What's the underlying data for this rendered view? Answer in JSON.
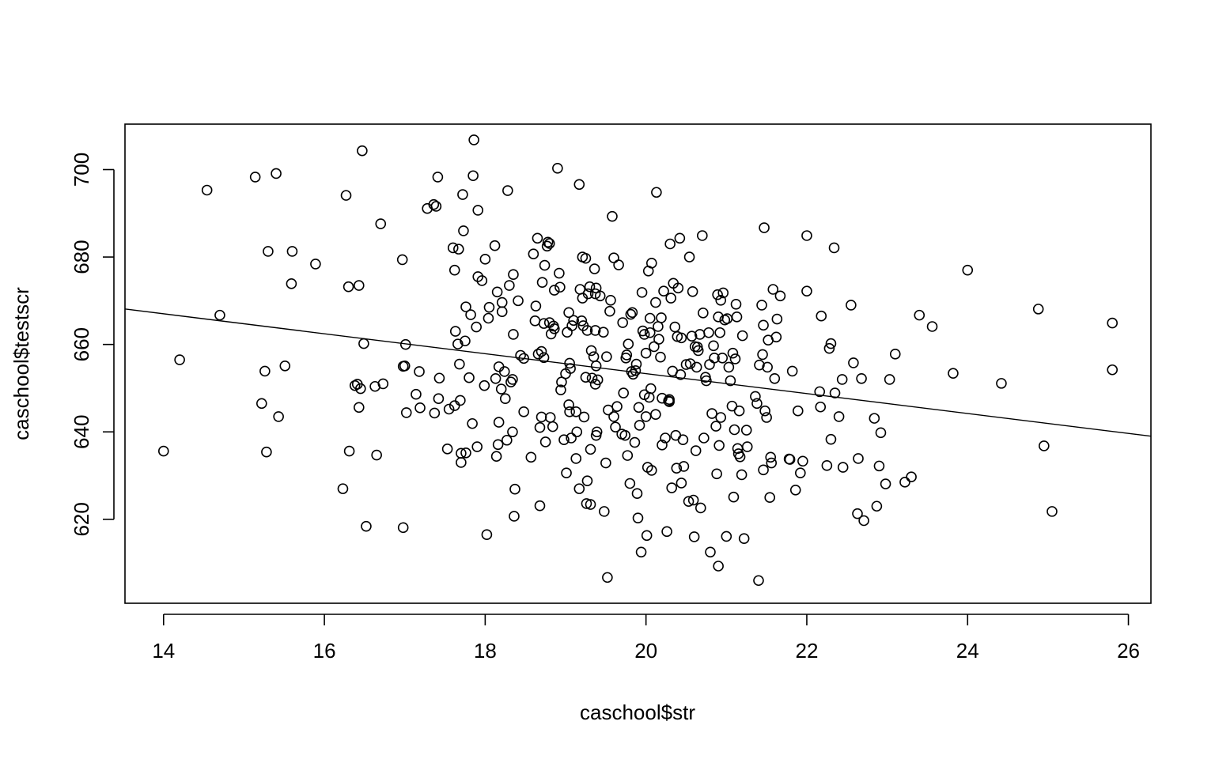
{
  "chart_data": {
    "type": "scatter",
    "title": "",
    "xlabel": "caschool$str",
    "ylabel": "caschool$testscr",
    "xlim": [
      13.52,
      26.28
    ],
    "ylim": [
      600.8,
      710.4
    ],
    "x_ticks": [
      14,
      16,
      18,
      20,
      22,
      24,
      26
    ],
    "x_tick_labels": [
      "14",
      "16",
      "18",
      "20",
      "22",
      "24",
      "26"
    ],
    "y_ticks": [
      620,
      640,
      660,
      680,
      700
    ],
    "y_tick_labels": [
      "620",
      "640",
      "660",
      "680",
      "700"
    ],
    "grid": false,
    "legend": "none",
    "regression_line": {
      "intercept": 698.93,
      "slope": -2.28
    },
    "points": [
      [
        14.0,
        635.6
      ],
      [
        14.2,
        656.5
      ],
      [
        14.54,
        695.3
      ],
      [
        14.7,
        666.7
      ],
      [
        15.14,
        698.3
      ],
      [
        15.22,
        646.5
      ],
      [
        15.26,
        653.9
      ],
      [
        15.28,
        635.4
      ],
      [
        15.3,
        681.3
      ],
      [
        15.4,
        699.1
      ],
      [
        15.43,
        643.5
      ],
      [
        15.51,
        655.1
      ],
      [
        15.59,
        673.9
      ],
      [
        15.6,
        681.3
      ],
      [
        15.89,
        678.4
      ],
      [
        16.23,
        627.0
      ],
      [
        16.27,
        694.1
      ],
      [
        16.3,
        673.2
      ],
      [
        16.31,
        635.6
      ],
      [
        16.38,
        650.6
      ],
      [
        16.41,
        650.9
      ],
      [
        16.43,
        673.5
      ],
      [
        16.43,
        645.6
      ],
      [
        16.45,
        649.9
      ],
      [
        16.47,
        704.3
      ],
      [
        16.49,
        660.2
      ],
      [
        16.52,
        618.4
      ],
      [
        16.63,
        650.4
      ],
      [
        16.65,
        634.7
      ],
      [
        16.7,
        687.6
      ],
      [
        16.73,
        651.0
      ],
      [
        16.97,
        679.4
      ],
      [
        16.98,
        618.1
      ],
      [
        16.98,
        655.0
      ],
      [
        17.0,
        655.1
      ],
      [
        17.01,
        660.0
      ],
      [
        17.02,
        644.4
      ],
      [
        17.14,
        648.6
      ],
      [
        17.18,
        653.8
      ],
      [
        17.19,
        645.5
      ],
      [
        17.28,
        691.1
      ],
      [
        17.36,
        692.0
      ],
      [
        17.37,
        644.3
      ],
      [
        17.39,
        691.6
      ],
      [
        17.41,
        698.3
      ],
      [
        17.42,
        647.6
      ],
      [
        17.43,
        652.3
      ],
      [
        17.53,
        636.1
      ],
      [
        17.55,
        645.2
      ],
      [
        17.6,
        682.1
      ],
      [
        17.62,
        646.0
      ],
      [
        17.62,
        677.0
      ],
      [
        17.63,
        663.0
      ],
      [
        17.66,
        660.1
      ],
      [
        17.67,
        681.8
      ],
      [
        17.68,
        655.5
      ],
      [
        17.69,
        647.2
      ],
      [
        17.7,
        633.0
      ],
      [
        17.7,
        635.1
      ],
      [
        17.72,
        694.3
      ],
      [
        17.73,
        686.0
      ],
      [
        17.75,
        660.8
      ],
      [
        17.76,
        668.6
      ],
      [
        17.76,
        635.2
      ],
      [
        17.8,
        652.4
      ],
      [
        17.82,
        666.8
      ],
      [
        17.84,
        641.9
      ],
      [
        17.85,
        698.6
      ],
      [
        17.86,
        706.8
      ],
      [
        17.89,
        664.0
      ],
      [
        17.9,
        636.6
      ],
      [
        17.91,
        675.5
      ],
      [
        17.91,
        690.7
      ],
      [
        17.96,
        674.6
      ],
      [
        17.99,
        650.6
      ],
      [
        18.0,
        679.5
      ],
      [
        18.02,
        616.5
      ],
      [
        18.04,
        666.0
      ],
      [
        18.05,
        668.5
      ],
      [
        18.12,
        682.6
      ],
      [
        18.13,
        652.2
      ],
      [
        18.14,
        634.4
      ],
      [
        18.15,
        672.0
      ],
      [
        18.16,
        637.1
      ],
      [
        18.17,
        642.2
      ],
      [
        18.17,
        654.9
      ],
      [
        18.2,
        649.8
      ],
      [
        18.21,
        667.5
      ],
      [
        18.21,
        669.6
      ],
      [
        18.24,
        653.8
      ],
      [
        18.25,
        647.6
      ],
      [
        18.27,
        638.1
      ],
      [
        18.28,
        695.2
      ],
      [
        18.3,
        673.5
      ],
      [
        18.32,
        651.4
      ],
      [
        18.34,
        652.0
      ],
      [
        18.34,
        640.0
      ],
      [
        18.35,
        662.3
      ],
      [
        18.35,
        676.0
      ],
      [
        18.36,
        620.7
      ],
      [
        18.37,
        626.9
      ],
      [
        18.41,
        670.0
      ],
      [
        18.44,
        657.5
      ],
      [
        18.48,
        644.6
      ],
      [
        18.48,
        656.8
      ],
      [
        18.57,
        634.2
      ],
      [
        18.6,
        680.7
      ],
      [
        18.62,
        665.4
      ],
      [
        18.63,
        668.8
      ],
      [
        18.65,
        684.3
      ],
      [
        18.66,
        657.8
      ],
      [
        18.68,
        641.0
      ],
      [
        18.68,
        623.1
      ],
      [
        18.7,
        643.4
      ],
      [
        18.7,
        658.4
      ],
      [
        18.71,
        674.2
      ],
      [
        18.73,
        657.0
      ],
      [
        18.73,
        664.8
      ],
      [
        18.74,
        678.1
      ],
      [
        18.75,
        637.7
      ],
      [
        18.77,
        682.5
      ],
      [
        18.78,
        683.4
      ],
      [
        18.8,
        665.0
      ],
      [
        18.8,
        683.1
      ],
      [
        18.81,
        643.3
      ],
      [
        18.82,
        662.4
      ],
      [
        18.84,
        641.2
      ],
      [
        18.85,
        664.2
      ],
      [
        18.86,
        672.4
      ],
      [
        18.86,
        663.6
      ],
      [
        18.9,
        700.3
      ],
      [
        18.92,
        676.3
      ],
      [
        18.93,
        673.1
      ],
      [
        18.94,
        649.6
      ],
      [
        18.95,
        651.4
      ],
      [
        18.98,
        638.2
      ],
      [
        19.0,
        653.3
      ],
      [
        19.01,
        630.6
      ],
      [
        19.02,
        662.8
      ],
      [
        19.04,
        646.2
      ],
      [
        19.04,
        667.3
      ],
      [
        19.05,
        644.6
      ],
      [
        19.05,
        655.7
      ],
      [
        19.06,
        654.5
      ],
      [
        19.07,
        638.6
      ],
      [
        19.08,
        664.3
      ],
      [
        19.1,
        665.5
      ],
      [
        19.13,
        644.6
      ],
      [
        19.13,
        633.9
      ],
      [
        19.14,
        640.0
      ],
      [
        19.17,
        696.6
      ],
      [
        19.17,
        627.0
      ],
      [
        19.18,
        672.6
      ],
      [
        19.2,
        665.4
      ],
      [
        19.21,
        680.0
      ],
      [
        19.21,
        670.6
      ],
      [
        19.22,
        664.3
      ],
      [
        19.23,
        643.4
      ],
      [
        19.25,
        679.7
      ],
      [
        19.25,
        652.5
      ],
      [
        19.26,
        623.6
      ],
      [
        19.27,
        628.8
      ],
      [
        19.27,
        663.2
      ],
      [
        19.28,
        671.6
      ],
      [
        19.3,
        673.2
      ],
      [
        19.31,
        623.4
      ],
      [
        19.31,
        636.0
      ],
      [
        19.32,
        658.6
      ],
      [
        19.33,
        652.3
      ],
      [
        19.35,
        657.2
      ],
      [
        19.36,
        677.3
      ],
      [
        19.37,
        663.2
      ],
      [
        19.37,
        671.6
      ],
      [
        19.37,
        650.9
      ],
      [
        19.38,
        672.9
      ],
      [
        19.38,
        655.1
      ],
      [
        19.38,
        639.2
      ],
      [
        19.39,
        640.0
      ],
      [
        19.4,
        651.9
      ],
      [
        19.43,
        671.1
      ],
      [
        19.47,
        662.8
      ],
      [
        19.48,
        621.8
      ],
      [
        19.5,
        632.9
      ],
      [
        19.51,
        657.2
      ],
      [
        19.52,
        606.7
      ],
      [
        19.53,
        645.0
      ],
      [
        19.55,
        667.6
      ],
      [
        19.56,
        670.1
      ],
      [
        19.58,
        689.3
      ],
      [
        19.6,
        643.5
      ],
      [
        19.6,
        679.8
      ],
      [
        19.62,
        641.1
      ],
      [
        19.64,
        645.8
      ],
      [
        19.66,
        678.2
      ],
      [
        19.7,
        639.5
      ],
      [
        19.71,
        665.0
      ],
      [
        19.72,
        648.9
      ],
      [
        19.74,
        639.2
      ],
      [
        19.75,
        656.9
      ],
      [
        19.76,
        657.6
      ],
      [
        19.77,
        634.6
      ],
      [
        19.78,
        660.1
      ],
      [
        19.8,
        628.2
      ],
      [
        19.81,
        666.9
      ],
      [
        19.82,
        653.8
      ],
      [
        19.83,
        667.3
      ],
      [
        19.84,
        653.2
      ],
      [
        19.86,
        637.6
      ],
      [
        19.87,
        654.0
      ],
      [
        19.88,
        655.5
      ],
      [
        19.89,
        625.9
      ],
      [
        19.9,
        620.3
      ],
      [
        19.91,
        645.6
      ],
      [
        19.92,
        641.5
      ],
      [
        19.94,
        612.5
      ],
      [
        19.95,
        671.9
      ],
      [
        19.96,
        663.1
      ],
      [
        19.98,
        662.3
      ],
      [
        19.98,
        648.5
      ],
      [
        20.0,
        658.0
      ],
      [
        20.0,
        643.5
      ],
      [
        20.01,
        616.3
      ],
      [
        20.02,
        631.9
      ],
      [
        20.03,
        676.8
      ],
      [
        20.04,
        647.9
      ],
      [
        20.05,
        662.7
      ],
      [
        20.05,
        666.0
      ],
      [
        20.06,
        649.9
      ],
      [
        20.07,
        631.2
      ],
      [
        20.07,
        678.6
      ],
      [
        20.1,
        659.5
      ],
      [
        20.12,
        669.6
      ],
      [
        20.12,
        644.0
      ],
      [
        20.13,
        694.8
      ],
      [
        20.15,
        664.1
      ],
      [
        20.16,
        661.2
      ],
      [
        20.18,
        657.1
      ],
      [
        20.19,
        666.1
      ],
      [
        20.2,
        647.7
      ],
      [
        20.2,
        637.0
      ],
      [
        20.22,
        672.2
      ],
      [
        20.24,
        638.6
      ],
      [
        20.26,
        617.2
      ],
      [
        20.28,
        647.1
      ],
      [
        20.29,
        647.4
      ],
      [
        20.29,
        646.9
      ],
      [
        20.3,
        683.0
      ],
      [
        20.31,
        670.6
      ],
      [
        20.32,
        627.2
      ],
      [
        20.33,
        653.9
      ],
      [
        20.34,
        674.0
      ],
      [
        20.36,
        664.0
      ],
      [
        20.37,
        639.2
      ],
      [
        20.38,
        631.7
      ],
      [
        20.39,
        661.8
      ],
      [
        20.4,
        672.9
      ],
      [
        20.42,
        684.3
      ],
      [
        20.43,
        653.1
      ],
      [
        20.44,
        661.5
      ],
      [
        20.44,
        628.3
      ],
      [
        20.46,
        638.2
      ],
      [
        20.47,
        632.1
      ],
      [
        20.5,
        655.4
      ],
      [
        20.53,
        624.1
      ],
      [
        20.54,
        680.0
      ],
      [
        20.55,
        655.6
      ],
      [
        20.57,
        661.9
      ],
      [
        20.58,
        672.1
      ],
      [
        20.59,
        624.4
      ],
      [
        20.6,
        616.0
      ],
      [
        20.61,
        659.5
      ],
      [
        20.62,
        635.7
      ],
      [
        20.63,
        654.8
      ],
      [
        20.64,
        659.4
      ],
      [
        20.65,
        658.6
      ],
      [
        20.67,
        662.3
      ],
      [
        20.68,
        622.6
      ],
      [
        20.7,
        684.9
      ],
      [
        20.71,
        667.2
      ],
      [
        20.72,
        638.6
      ],
      [
        20.74,
        652.5
      ],
      [
        20.75,
        651.7
      ],
      [
        20.78,
        662.7
      ],
      [
        20.79,
        655.4
      ],
      [
        20.8,
        612.5
      ],
      [
        20.82,
        644.2
      ],
      [
        20.84,
        659.7
      ],
      [
        20.85,
        656.9
      ],
      [
        20.87,
        641.3
      ],
      [
        20.88,
        630.4
      ],
      [
        20.89,
        671.4
      ],
      [
        20.9,
        609.3
      ],
      [
        20.9,
        666.3
      ],
      [
        20.91,
        636.9
      ],
      [
        20.92,
        662.7
      ],
      [
        20.93,
        643.3
      ],
      [
        20.93,
        670.1
      ],
      [
        20.95,
        656.9
      ],
      [
        20.96,
        671.8
      ],
      [
        20.98,
        665.6
      ],
      [
        21.0,
        616.1
      ],
      [
        21.01,
        665.9
      ],
      [
        21.03,
        654.8
      ],
      [
        21.05,
        651.7
      ],
      [
        21.07,
        645.9
      ],
      [
        21.08,
        658.0
      ],
      [
        21.09,
        625.1
      ],
      [
        21.1,
        640.5
      ],
      [
        21.11,
        656.7
      ],
      [
        21.12,
        669.2
      ],
      [
        21.13,
        666.3
      ],
      [
        21.14,
        636.2
      ],
      [
        21.15,
        635.0
      ],
      [
        21.16,
        644.8
      ],
      [
        21.17,
        634.3
      ],
      [
        21.19,
        630.2
      ],
      [
        21.2,
        662.0
      ],
      [
        21.22,
        615.6
      ],
      [
        21.25,
        640.4
      ],
      [
        21.26,
        636.6
      ],
      [
        21.36,
        648.1
      ],
      [
        21.38,
        646.5
      ],
      [
        21.4,
        606.0
      ],
      [
        21.41,
        655.3
      ],
      [
        21.44,
        669.0
      ],
      [
        21.45,
        657.7
      ],
      [
        21.46,
        664.4
      ],
      [
        21.46,
        631.3
      ],
      [
        21.47,
        686.7
      ],
      [
        21.48,
        644.8
      ],
      [
        21.5,
        643.3
      ],
      [
        21.51,
        654.8
      ],
      [
        21.52,
        661.0
      ],
      [
        21.54,
        625.0
      ],
      [
        21.55,
        634.2
      ],
      [
        21.56,
        632.9
      ],
      [
        21.58,
        672.6
      ],
      [
        21.6,
        652.2
      ],
      [
        21.62,
        661.7
      ],
      [
        21.63,
        665.8
      ],
      [
        21.67,
        671.1
      ],
      [
        21.78,
        633.8
      ],
      [
        21.79,
        633.7
      ],
      [
        21.82,
        653.9
      ],
      [
        21.86,
        626.7
      ],
      [
        21.89,
        644.8
      ],
      [
        21.92,
        630.6
      ],
      [
        21.95,
        633.3
      ],
      [
        22.0,
        684.9
      ],
      [
        22.0,
        672.2
      ],
      [
        22.16,
        649.2
      ],
      [
        22.17,
        645.7
      ],
      [
        22.18,
        666.5
      ],
      [
        22.25,
        632.3
      ],
      [
        22.28,
        659.1
      ],
      [
        22.3,
        660.2
      ],
      [
        22.3,
        638.3
      ],
      [
        22.34,
        682.1
      ],
      [
        22.35,
        648.9
      ],
      [
        22.4,
        643.5
      ],
      [
        22.44,
        652.0
      ],
      [
        22.45,
        631.9
      ],
      [
        22.55,
        669.0
      ],
      [
        22.58,
        655.8
      ],
      [
        22.63,
        621.3
      ],
      [
        22.64,
        633.9
      ],
      [
        22.68,
        652.2
      ],
      [
        22.71,
        619.7
      ],
      [
        22.84,
        643.1
      ],
      [
        22.87,
        623.0
      ],
      [
        22.9,
        632.2
      ],
      [
        22.92,
        639.8
      ],
      [
        22.98,
        628.1
      ],
      [
        23.03,
        652.0
      ],
      [
        23.1,
        657.8
      ],
      [
        23.22,
        628.5
      ],
      [
        23.3,
        629.7
      ],
      [
        23.4,
        666.7
      ],
      [
        23.56,
        664.1
      ],
      [
        23.82,
        653.4
      ],
      [
        24.0,
        677.0
      ],
      [
        24.42,
        651.1
      ],
      [
        24.88,
        668.1
      ],
      [
        24.95,
        636.8
      ],
      [
        25.05,
        621.8
      ],
      [
        25.8,
        654.2
      ],
      [
        25.8,
        664.9
      ]
    ]
  }
}
